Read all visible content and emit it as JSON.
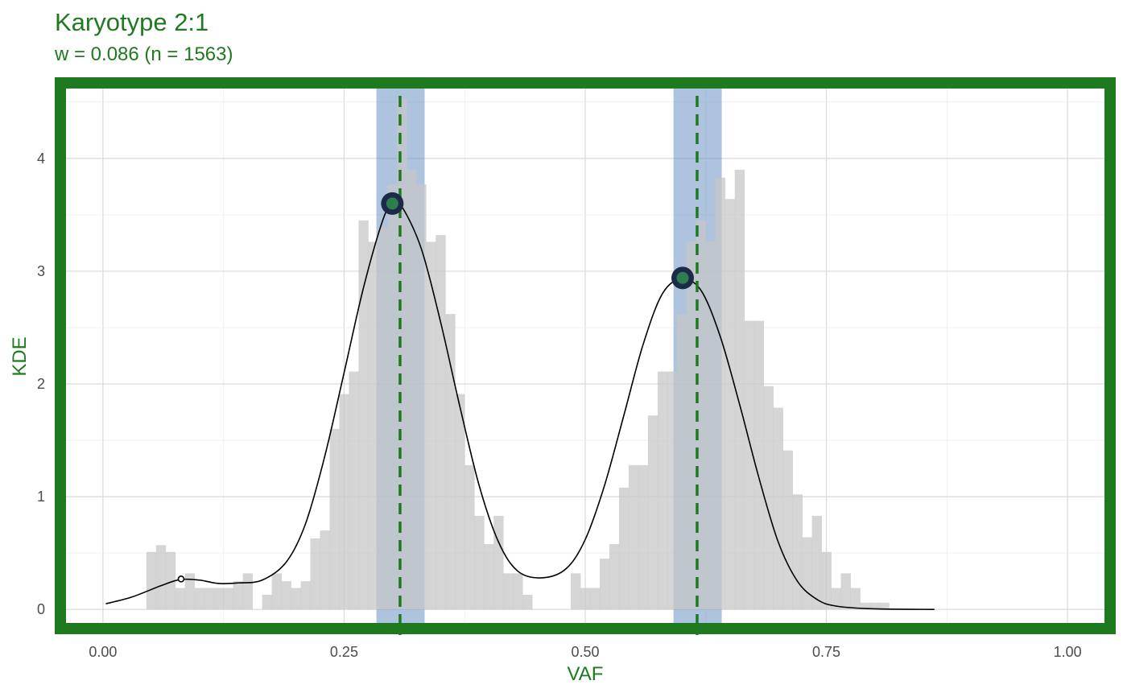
{
  "chart_data": {
    "type": "histogram",
    "title": "Karyotype 2:1",
    "subtitle": "w = 0.086 (n = 1563)",
    "xlabel": "VAF",
    "ylabel": "KDE",
    "xlim": [
      -0.05,
      1.05
    ],
    "ylim": [
      -0.22,
      4.72
    ],
    "x_ticks": [
      {
        "value": 0.0,
        "label": "0.00"
      },
      {
        "value": 0.25,
        "label": "0.25"
      },
      {
        "value": 0.5,
        "label": "0.50"
      },
      {
        "value": 0.75,
        "label": "0.75"
      },
      {
        "value": 1.0,
        "label": "1.00"
      }
    ],
    "y_ticks": [
      {
        "value": 0,
        "label": "0"
      },
      {
        "value": 1,
        "label": "1"
      },
      {
        "value": 2,
        "label": "2"
      },
      {
        "value": 3,
        "label": "3"
      },
      {
        "value": 4,
        "label": "4"
      }
    ],
    "grid": true,
    "histogram": {
      "bin_start": 0.045,
      "bin_width": 0.01,
      "values": [
        0.51,
        0.57,
        0.51,
        0.19,
        0.32,
        0.19,
        0.19,
        0.19,
        0.19,
        0.25,
        0.32,
        0,
        0.13,
        0.32,
        0.25,
        0.19,
        0.25,
        0.63,
        0.7,
        1.6,
        1.91,
        2.11,
        3.45,
        3.26,
        3.39,
        3.77,
        4.53,
        3.9,
        3.77,
        3.26,
        3.32,
        2.62,
        1.91,
        1.28,
        0.83,
        0.58,
        0.83,
        0.32,
        0.32,
        0.13,
        0,
        0,
        0,
        0,
        0.32,
        0.19,
        0.19,
        0.45,
        0.58,
        1.08,
        1.28,
        1.28,
        1.72,
        2.11,
        2.11,
        2.62,
        3.26,
        3.45,
        3.26,
        3.83,
        3.64,
        3.9,
        2.56,
        2.56,
        1.98,
        1.79,
        1.41,
        1.02,
        0.64,
        0.83,
        0.51,
        0.19,
        0.32,
        0.19,
        0.06,
        0.06,
        0.06
      ],
      "color": "#c7c7c7"
    },
    "kde_points": [
      [
        0.003,
        0.05
      ],
      [
        0.03,
        0.11
      ],
      [
        0.06,
        0.21
      ],
      [
        0.08,
        0.265
      ],
      [
        0.1,
        0.26
      ],
      [
        0.12,
        0.23
      ],
      [
        0.14,
        0.235
      ],
      [
        0.165,
        0.26
      ],
      [
        0.19,
        0.42
      ],
      [
        0.21,
        0.76
      ],
      [
        0.23,
        1.36
      ],
      [
        0.25,
        2.1
      ],
      [
        0.27,
        2.85
      ],
      [
        0.29,
        3.45
      ],
      [
        0.3,
        3.6
      ],
      [
        0.31,
        3.57
      ],
      [
        0.33,
        3.2
      ],
      [
        0.35,
        2.55
      ],
      [
        0.37,
        1.8
      ],
      [
        0.39,
        1.1
      ],
      [
        0.41,
        0.6
      ],
      [
        0.43,
        0.34
      ],
      [
        0.455,
        0.28
      ],
      [
        0.48,
        0.36
      ],
      [
        0.5,
        0.62
      ],
      [
        0.52,
        1.1
      ],
      [
        0.54,
        1.72
      ],
      [
        0.56,
        2.35
      ],
      [
        0.58,
        2.8
      ],
      [
        0.6,
        2.93
      ],
      [
        0.62,
        2.83
      ],
      [
        0.64,
        2.42
      ],
      [
        0.66,
        1.82
      ],
      [
        0.68,
        1.17
      ],
      [
        0.7,
        0.6
      ],
      [
        0.72,
        0.25
      ],
      [
        0.74,
        0.09
      ],
      [
        0.76,
        0.03
      ],
      [
        0.8,
        0.005
      ],
      [
        0.862,
        0.0
      ]
    ],
    "kde_color": "#000000",
    "peaks": [
      {
        "x": 0.3,
        "y": 3.6,
        "size": "large"
      },
      {
        "x": 0.601,
        "y": 2.94,
        "size": "large"
      },
      {
        "x": 0.081,
        "y": 0.27,
        "size": "small"
      }
    ],
    "peak_color": "#2e7d4f",
    "peak_ring_color": "#1b2a47",
    "expected_peaks": [
      0.308,
      0.616
    ],
    "tolerance_bands": [
      [
        0.2835,
        0.3335
      ],
      [
        0.5915,
        0.6415
      ]
    ],
    "band_color": "#6a92c2",
    "line_color": "#1f7a1f",
    "frame_color": "#1f7a1f",
    "title_color": "#1f7a1f"
  }
}
